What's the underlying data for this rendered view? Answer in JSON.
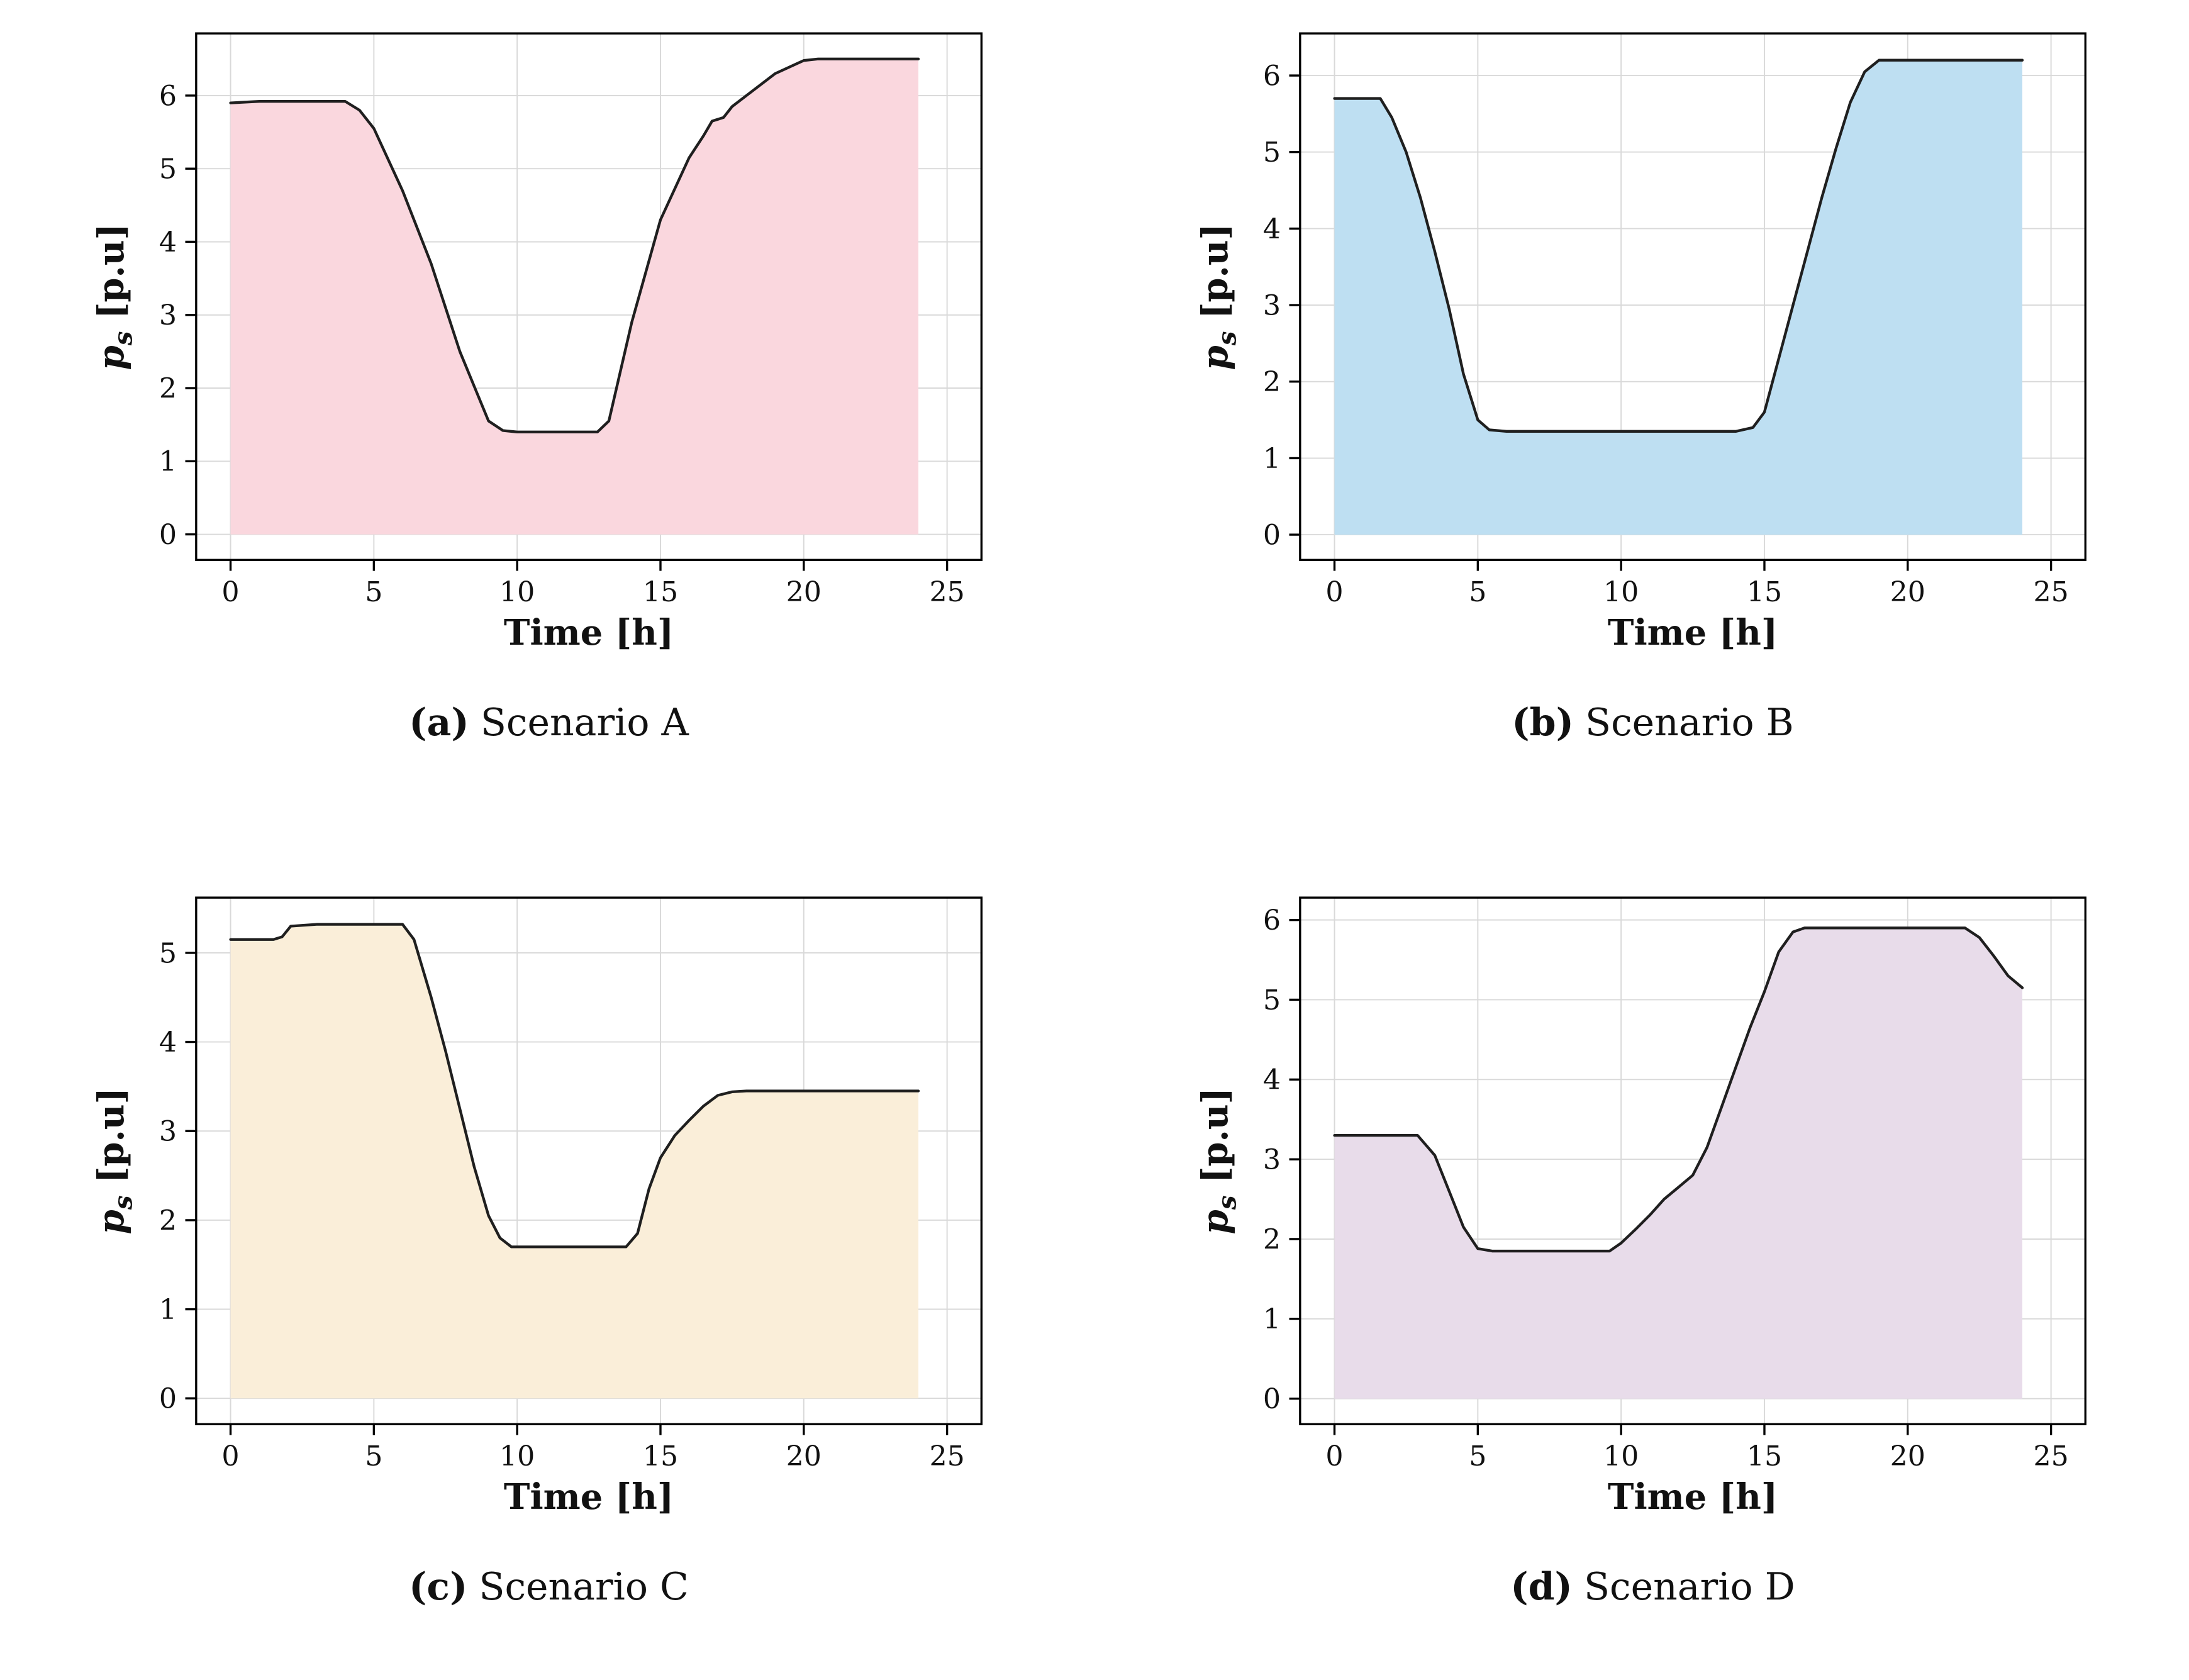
{
  "page": {
    "background": "#ffffff"
  },
  "style": {
    "grid_color": "#d9d9d9",
    "spine_color": "#000000",
    "line_color": "#1f1f1f",
    "tick_color": "#111111"
  },
  "chart_data": [
    {
      "type": "area",
      "caption_label": "(a)",
      "caption_title": "Scenario A",
      "xlabel": "Time [h]",
      "ylabel_var": "p",
      "ylabel_sub": "s",
      "ylabel_unit": " [p.u]",
      "fill_color": "#fad7de",
      "line_color": "#1f1f1f",
      "xlim": [
        -1.2,
        26.2
      ],
      "ylim": [
        -0.35,
        6.85
      ],
      "xticks": [
        0,
        5,
        10,
        15,
        20,
        25
      ],
      "yticks": [
        0,
        1,
        2,
        3,
        4,
        5,
        6
      ],
      "grid": true,
      "legend": "none",
      "x": [
        0,
        1,
        2,
        3,
        4,
        4.5,
        5,
        6,
        7,
        8,
        9,
        9.5,
        10,
        11,
        12,
        12.8,
        13.2,
        14,
        15,
        16,
        16.5,
        16.8,
        17.2,
        17.5,
        18,
        19,
        20,
        20.5,
        21,
        22,
        23,
        24
      ],
      "y": [
        5.9,
        5.92,
        5.92,
        5.92,
        5.92,
        5.8,
        5.55,
        4.7,
        3.7,
        2.5,
        1.55,
        1.42,
        1.4,
        1.4,
        1.4,
        1.4,
        1.55,
        2.9,
        4.3,
        5.15,
        5.45,
        5.65,
        5.7,
        5.85,
        6.0,
        6.3,
        6.48,
        6.5,
        6.5,
        6.5,
        6.5,
        6.5
      ]
    },
    {
      "type": "area",
      "caption_label": "(b)",
      "caption_title": "Scenario B",
      "xlabel": "Time [h]",
      "ylabel_var": "p",
      "ylabel_sub": "s",
      "ylabel_unit": " [p.u]",
      "fill_color": "#bedff2",
      "line_color": "#1f1f1f",
      "xlim": [
        -1.2,
        26.2
      ],
      "ylim": [
        -0.33,
        6.55
      ],
      "xticks": [
        0,
        5,
        10,
        15,
        20,
        25
      ],
      "yticks": [
        0,
        1,
        2,
        3,
        4,
        5,
        6
      ],
      "grid": true,
      "legend": "none",
      "x": [
        0,
        1,
        1.6,
        2,
        2.5,
        3,
        3.5,
        4,
        4.5,
        5,
        5.4,
        6,
        7,
        8,
        9,
        10,
        11,
        12,
        13,
        14,
        14.6,
        15,
        15.5,
        16,
        16.5,
        17,
        17.5,
        18,
        18.5,
        19,
        20,
        21,
        22,
        23,
        24
      ],
      "y": [
        5.7,
        5.7,
        5.7,
        5.45,
        5.0,
        4.4,
        3.7,
        2.95,
        2.1,
        1.5,
        1.37,
        1.35,
        1.35,
        1.35,
        1.35,
        1.35,
        1.35,
        1.35,
        1.35,
        1.35,
        1.4,
        1.6,
        2.3,
        3.0,
        3.7,
        4.4,
        5.05,
        5.65,
        6.05,
        6.2,
        6.2,
        6.2,
        6.2,
        6.2,
        6.2
      ]
    },
    {
      "type": "area",
      "caption_label": "(c)",
      "caption_title": "Scenario C",
      "xlabel": "Time [h]",
      "ylabel_var": "p",
      "ylabel_sub": "s",
      "ylabel_unit": " [p.u]",
      "fill_color": "#faeed9",
      "line_color": "#1f1f1f",
      "xlim": [
        -1.2,
        26.2
      ],
      "ylim": [
        -0.29,
        5.62
      ],
      "xticks": [
        0,
        5,
        10,
        15,
        20,
        25
      ],
      "yticks": [
        0,
        1,
        2,
        3,
        4,
        5
      ],
      "grid": true,
      "legend": "none",
      "x": [
        0,
        1,
        1.5,
        1.8,
        2.1,
        3,
        4,
        5,
        6,
        6.4,
        7,
        7.5,
        8,
        8.5,
        9,
        9.4,
        9.8,
        10,
        11,
        12,
        13,
        13.8,
        14.2,
        14.6,
        15,
        15.5,
        16,
        16.5,
        17,
        17.5,
        18,
        19,
        20,
        21,
        22,
        23,
        24
      ],
      "y": [
        5.15,
        5.15,
        5.15,
        5.18,
        5.3,
        5.32,
        5.32,
        5.32,
        5.32,
        5.15,
        4.5,
        3.9,
        3.25,
        2.6,
        2.05,
        1.8,
        1.7,
        1.7,
        1.7,
        1.7,
        1.7,
        1.7,
        1.85,
        2.35,
        2.7,
        2.95,
        3.12,
        3.28,
        3.4,
        3.44,
        3.45,
        3.45,
        3.45,
        3.45,
        3.45,
        3.45,
        3.45
      ]
    },
    {
      "type": "area",
      "caption_label": "(d)",
      "caption_title": "Scenario D",
      "xlabel": "Time [h]",
      "ylabel_var": "p",
      "ylabel_sub": "s",
      "ylabel_unit": " [p.u]",
      "fill_color": "#e8dcea",
      "line_color": "#1f1f1f",
      "xlim": [
        -1.2,
        26.2
      ],
      "ylim": [
        -0.32,
        6.28
      ],
      "xticks": [
        0,
        5,
        10,
        15,
        20,
        25
      ],
      "yticks": [
        0,
        1,
        2,
        3,
        4,
        5,
        6
      ],
      "grid": true,
      "legend": "none",
      "x": [
        0,
        1,
        2,
        2.9,
        3.5,
        4,
        4.5,
        5,
        5.5,
        6,
        7,
        8,
        9,
        9.6,
        10,
        10.5,
        11,
        11.5,
        12,
        12.5,
        13,
        13.5,
        14,
        14.5,
        15,
        15.5,
        16,
        16.4,
        17,
        18,
        19,
        20,
        21,
        22,
        22.5,
        23,
        23.5,
        24
      ],
      "y": [
        3.3,
        3.3,
        3.3,
        3.3,
        3.05,
        2.6,
        2.15,
        1.88,
        1.85,
        1.85,
        1.85,
        1.85,
        1.85,
        1.85,
        1.95,
        2.12,
        2.3,
        2.5,
        2.65,
        2.8,
        3.15,
        3.65,
        4.15,
        4.65,
        5.1,
        5.6,
        5.85,
        5.9,
        5.9,
        5.9,
        5.9,
        5.9,
        5.9,
        5.9,
        5.78,
        5.55,
        5.3,
        5.15
      ]
    }
  ]
}
